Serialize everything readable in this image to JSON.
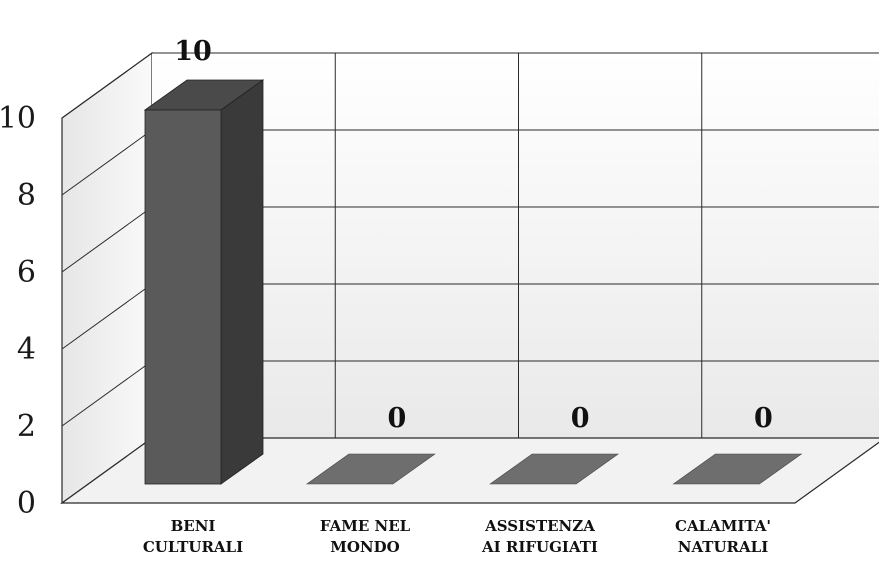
{
  "chart_data": {
    "type": "bar",
    "categories": [
      [
        "BENI",
        "CULTURALI"
      ],
      [
        "FAME NEL",
        "MONDO"
      ],
      [
        "ASSISTENZA",
        "AI RIFUGIATI"
      ],
      [
        "CALAMITA'",
        "NATURALI"
      ]
    ],
    "values": [
      10,
      0,
      0,
      0
    ],
    "data_labels": [
      "10",
      "0",
      "0",
      "0"
    ],
    "y_ticks": [
      "0",
      "2",
      "4",
      "6",
      "8",
      "10"
    ],
    "ylim": [
      0,
      10
    ],
    "title": "",
    "xlabel": "",
    "ylabel": "",
    "grid": true,
    "three_d": true,
    "colors": {
      "bar_front": "#5a5a5a",
      "bar_side": "#3a3a3a",
      "bar_top": "#4a4a4a",
      "zero_bar_top": "#6e6e6e",
      "grid": "#2a2a2a"
    }
  }
}
